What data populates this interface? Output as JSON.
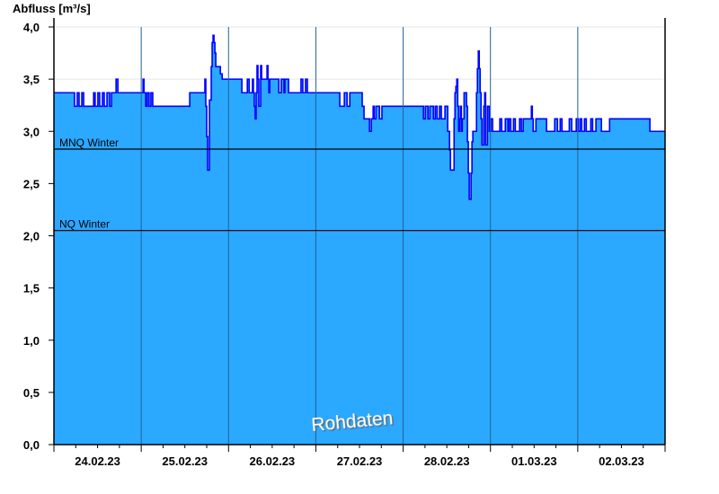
{
  "chart_data": {
    "type": "area",
    "ylabel": "Abfluss [m³/s]",
    "xlabel": "",
    "ylim": [
      0,
      4.0
    ],
    "xlim": [
      "24.02.23 00:00",
      "03.03.23 00:00"
    ],
    "y_ticks": [
      0,
      0.5,
      1.0,
      1.5,
      2.0,
      2.5,
      3.0,
      3.5,
      4.0
    ],
    "y_tick_labels": [
      "0,0",
      "0,5",
      "1,0",
      "1,5",
      "2,0",
      "2,5",
      "3,0",
      "3,5",
      "4,0"
    ],
    "x_tick_labels": [
      "24.02.23",
      "25.02.23",
      "26.02.23",
      "27.02.23",
      "28.02.23",
      "01.03.23",
      "02.03.23"
    ],
    "grid": true,
    "colors": {
      "fill": "#2ba8ff",
      "line": "#0000ff",
      "day_lines": "#1f6490",
      "grid": "#e6e6e6",
      "reference": "#000000"
    },
    "reference_lines": [
      {
        "label": "MNQ Winter",
        "value": 2.83
      },
      {
        "label": "NQ Winter",
        "value": 2.05
      }
    ],
    "watermark": "Rohdaten",
    "series": [
      {
        "points": [
          [
            "24.02.23 00:00",
            3.37
          ],
          [
            "24.02.23 05:40",
            3.24
          ],
          [
            "24.02.23 06:25",
            3.37
          ],
          [
            "24.02.23 06:55",
            3.24
          ],
          [
            "24.02.23 07:40",
            3.37
          ],
          [
            "24.02.23 08:10",
            3.24
          ],
          [
            "24.02.23 10:55",
            3.37
          ],
          [
            "24.02.23 11:20",
            3.24
          ],
          [
            "24.02.23 12:05",
            3.37
          ],
          [
            "24.02.23 12:35",
            3.24
          ],
          [
            "24.02.23 13:20",
            3.37
          ],
          [
            "24.02.23 13:50",
            3.24
          ],
          [
            "24.02.23 14:35",
            3.37
          ],
          [
            "24.02.23 15:20",
            3.24
          ],
          [
            "24.02.23 15:50",
            3.37
          ],
          [
            "24.02.23 17:05",
            3.5
          ],
          [
            "24.02.23 17:35",
            3.37
          ],
          [
            "25.02.23 00:30",
            3.5
          ],
          [
            "25.02.23 00:45",
            3.37
          ],
          [
            "25.02.23 01:15",
            3.24
          ],
          [
            "25.02.23 01:40",
            3.37
          ],
          [
            "25.02.23 02:10",
            3.24
          ],
          [
            "25.02.23 02:40",
            3.37
          ],
          [
            "25.02.23 03:10",
            3.24
          ],
          [
            "25.02.23 13:20",
            3.37
          ],
          [
            "25.02.23 17:30",
            3.5
          ],
          [
            "25.02.23 17:45",
            3.24
          ],
          [
            "25.02.23 18:00",
            2.95
          ],
          [
            "25.02.23 18:15",
            2.63
          ],
          [
            "25.02.23 18:45",
            3.3
          ],
          [
            "25.02.23 19:15",
            3.62
          ],
          [
            "25.02.23 19:30",
            3.85
          ],
          [
            "25.02.23 19:45",
            3.92
          ],
          [
            "25.02.23 20:00",
            3.85
          ],
          [
            "25.02.23 20:15",
            3.75
          ],
          [
            "25.02.23 20:30",
            3.62
          ],
          [
            "25.02.23 21:45",
            3.55
          ],
          [
            "25.02.23 22:15",
            3.5
          ],
          [
            "26.02.23 03:40",
            3.37
          ],
          [
            "26.02.23 05:10",
            3.5
          ],
          [
            "26.02.23 05:40",
            3.37
          ],
          [
            "26.02.23 06:35",
            3.5
          ],
          [
            "26.02.23 06:50",
            3.37
          ],
          [
            "26.02.23 07:05",
            3.24
          ],
          [
            "26.02.23 07:20",
            3.12
          ],
          [
            "26.02.23 07:35",
            3.37
          ],
          [
            "26.02.23 07:50",
            3.63
          ],
          [
            "26.02.23 08:05",
            3.5
          ],
          [
            "26.02.23 08:20",
            3.24
          ],
          [
            "26.02.23 08:50",
            3.63
          ],
          [
            "26.02.23 09:05",
            3.5
          ],
          [
            "26.02.23 10:35",
            3.63
          ],
          [
            "26.02.23 10:50",
            3.5
          ],
          [
            "26.02.23 11:05",
            3.37
          ],
          [
            "26.02.23 11:20",
            3.5
          ],
          [
            "26.02.23 13:50",
            3.37
          ],
          [
            "26.02.23 14:30",
            3.5
          ],
          [
            "26.02.23 15:15",
            3.37
          ],
          [
            "26.02.23 15:30",
            3.5
          ],
          [
            "26.02.23 16:30",
            3.37
          ],
          [
            "26.02.23 19:55",
            3.5
          ],
          [
            "26.02.23 20:25",
            3.37
          ],
          [
            "26.02.23 21:10",
            3.5
          ],
          [
            "26.02.23 21:40",
            3.37
          ],
          [
            "27.02.23 06:35",
            3.24
          ],
          [
            "27.02.23 07:50",
            3.37
          ],
          [
            "27.02.23 08:35",
            3.24
          ],
          [
            "27.02.23 09:20",
            3.37
          ],
          [
            "27.02.23 12:45",
            3.24
          ],
          [
            "27.02.23 13:15",
            3.12
          ],
          [
            "27.02.23 14:45",
            3.0
          ],
          [
            "27.02.23 15:15",
            3.12
          ],
          [
            "27.02.23 15:45",
            3.24
          ],
          [
            "27.02.23 16:00",
            3.12
          ],
          [
            "27.02.23 16:30",
            3.24
          ],
          [
            "27.02.23 17:30",
            3.12
          ],
          [
            "27.02.23 18:10",
            3.24
          ],
          [
            "28.02.23 05:35",
            3.12
          ],
          [
            "28.02.23 06:05",
            3.24
          ],
          [
            "28.02.23 06:50",
            3.12
          ],
          [
            "28.02.23 07:20",
            3.24
          ],
          [
            "28.02.23 08:20",
            3.12
          ],
          [
            "28.02.23 08:50",
            3.24
          ],
          [
            "28.02.23 09:20",
            3.12
          ],
          [
            "28.02.23 10:00",
            3.24
          ],
          [
            "28.02.23 10:30",
            3.12
          ],
          [
            "28.02.23 11:30",
            3.24
          ],
          [
            "28.02.23 12:15",
            3.0
          ],
          [
            "28.02.23 12:45",
            2.82
          ],
          [
            "28.02.23 13:00",
            2.63
          ],
          [
            "28.02.23 14:00",
            3.12
          ],
          [
            "28.02.23 14:15",
            3.37
          ],
          [
            "28.02.23 14:30",
            3.43
          ],
          [
            "28.02.23 14:45",
            3.5
          ],
          [
            "28.02.23 15:00",
            3.24
          ],
          [
            "28.02.23 15:15",
            3.0
          ],
          [
            "28.02.23 15:30",
            3.12
          ],
          [
            "28.02.23 15:45",
            3.24
          ],
          [
            "28.02.23 16:00",
            3.0
          ],
          [
            "28.02.23 16:15",
            3.12
          ],
          [
            "28.02.23 16:45",
            3.37
          ],
          [
            "28.02.23 17:25",
            3.24
          ],
          [
            "28.02.23 17:40",
            2.9
          ],
          [
            "28.02.23 17:55",
            2.6
          ],
          [
            "28.02.23 18:10",
            2.35
          ],
          [
            "28.02.23 18:40",
            2.6
          ],
          [
            "28.02.23 18:55",
            2.9
          ],
          [
            "28.02.23 19:10",
            3.0
          ],
          [
            "28.02.23 20:10",
            3.37
          ],
          [
            "28.02.23 20:25",
            3.6
          ],
          [
            "28.02.23 20:40",
            3.77
          ],
          [
            "28.02.23 20:55",
            3.6
          ],
          [
            "28.02.23 21:10",
            3.37
          ],
          [
            "28.02.23 21:25",
            3.12
          ],
          [
            "28.02.23 21:40",
            2.87
          ],
          [
            "28.02.23 22:10",
            3.24
          ],
          [
            "28.02.23 22:25",
            3.37
          ],
          [
            "28.02.23 22:40",
            2.87
          ],
          [
            "28.02.23 23:10",
            3.24
          ],
          [
            "28.02.23 23:40",
            3.0
          ],
          [
            "01.03.23 00:05",
            3.12
          ],
          [
            "01.03.23 00:35",
            3.0
          ],
          [
            "01.03.23 02:35",
            3.12
          ],
          [
            "01.03.23 03:05",
            3.0
          ],
          [
            "01.03.23 04:05",
            3.12
          ],
          [
            "01.03.23 04:50",
            3.0
          ],
          [
            "01.03.23 05:05",
            3.12
          ],
          [
            "01.03.23 05:35",
            3.0
          ],
          [
            "01.03.23 06:20",
            3.12
          ],
          [
            "01.03.23 06:50",
            3.0
          ],
          [
            "01.03.23 08:00",
            3.12
          ],
          [
            "01.03.23 08:30",
            3.0
          ],
          [
            "01.03.23 09:00",
            3.12
          ],
          [
            "01.03.23 11:15",
            3.24
          ],
          [
            "01.03.23 11:30",
            3.12
          ],
          [
            "01.03.23 11:45",
            3.0
          ],
          [
            "01.03.23 12:30",
            3.12
          ],
          [
            "01.03.23 15:25",
            3.0
          ],
          [
            "01.03.23 17:40",
            3.12
          ],
          [
            "01.03.23 18:25",
            3.0
          ],
          [
            "01.03.23 19:10",
            3.12
          ],
          [
            "01.03.23 19:40",
            3.0
          ],
          [
            "01.03.23 21:40",
            3.12
          ],
          [
            "01.03.23 22:20",
            3.0
          ],
          [
            "01.03.23 23:35",
            3.12
          ],
          [
            "02.03.23 00:05",
            3.0
          ],
          [
            "02.03.23 00:35",
            3.12
          ],
          [
            "02.03.23 01:05",
            3.0
          ],
          [
            "02.03.23 01:50",
            3.12
          ],
          [
            "02.03.23 02:20",
            3.0
          ],
          [
            "02.03.23 03:35",
            3.12
          ],
          [
            "02.03.23 04:05",
            3.0
          ],
          [
            "02.03.23 05:00",
            3.12
          ],
          [
            "02.03.23 06:30",
            3.0
          ],
          [
            "02.03.23 08:45",
            3.12
          ],
          [
            "02.03.23 19:50",
            3.0
          ],
          [
            "03.03.23 00:00",
            3.0
          ]
        ]
      }
    ]
  }
}
